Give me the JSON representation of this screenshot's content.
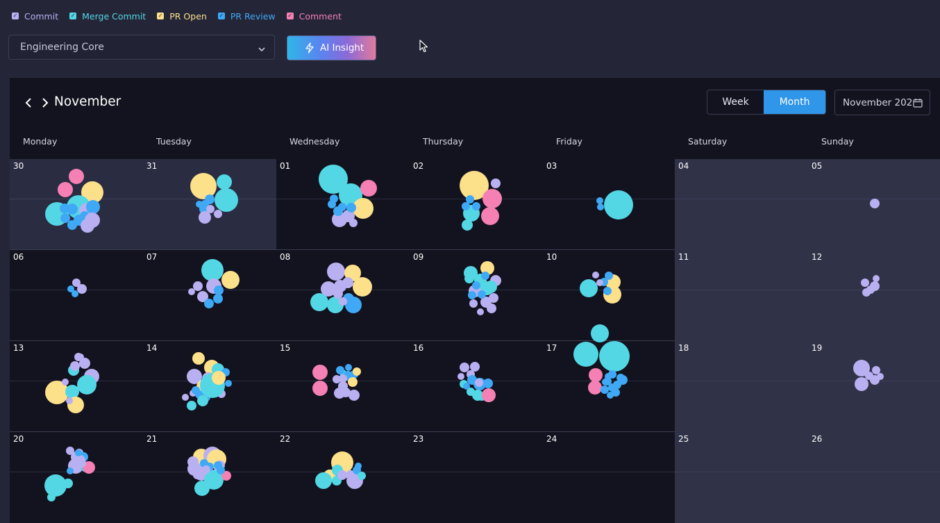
{
  "legend": [
    {
      "label": "Commit",
      "color": "#b9b0f2"
    },
    {
      "label": "Merge Commit",
      "color": "#53d7e4"
    },
    {
      "label": "PR Open",
      "color": "#fde08a"
    },
    {
      "label": "PR Review",
      "color": "#3fa9f5"
    },
    {
      "label": "Comment",
      "color": "#f580b4"
    }
  ],
  "legend_checked": "✓",
  "team_select": {
    "value": "Engineering Core",
    "icon": "chevron-down-icon"
  },
  "ai_button": {
    "label": "AI Insight",
    "icon": "lightning-bolt-icon"
  },
  "calendar": {
    "month_title": "November",
    "view_options": [
      "Week",
      "Month"
    ],
    "active_view": "Month",
    "date_picker_value": "November 202",
    "weekdays": [
      "Monday",
      "Tuesday",
      "Wednesday",
      "Thursday",
      "Friday",
      "Saturday",
      "Sunday"
    ],
    "weeks": [
      [
        "30",
        "31",
        "01",
        "02",
        "03",
        "04",
        "05"
      ],
      [
        "06",
        "07",
        "08",
        "09",
        "10",
        "11",
        "12"
      ],
      [
        "13",
        "14",
        "15",
        "16",
        "17",
        "18",
        "19"
      ],
      [
        "20",
        "21",
        "22",
        "23",
        "24",
        "25",
        "26"
      ]
    ]
  }
}
